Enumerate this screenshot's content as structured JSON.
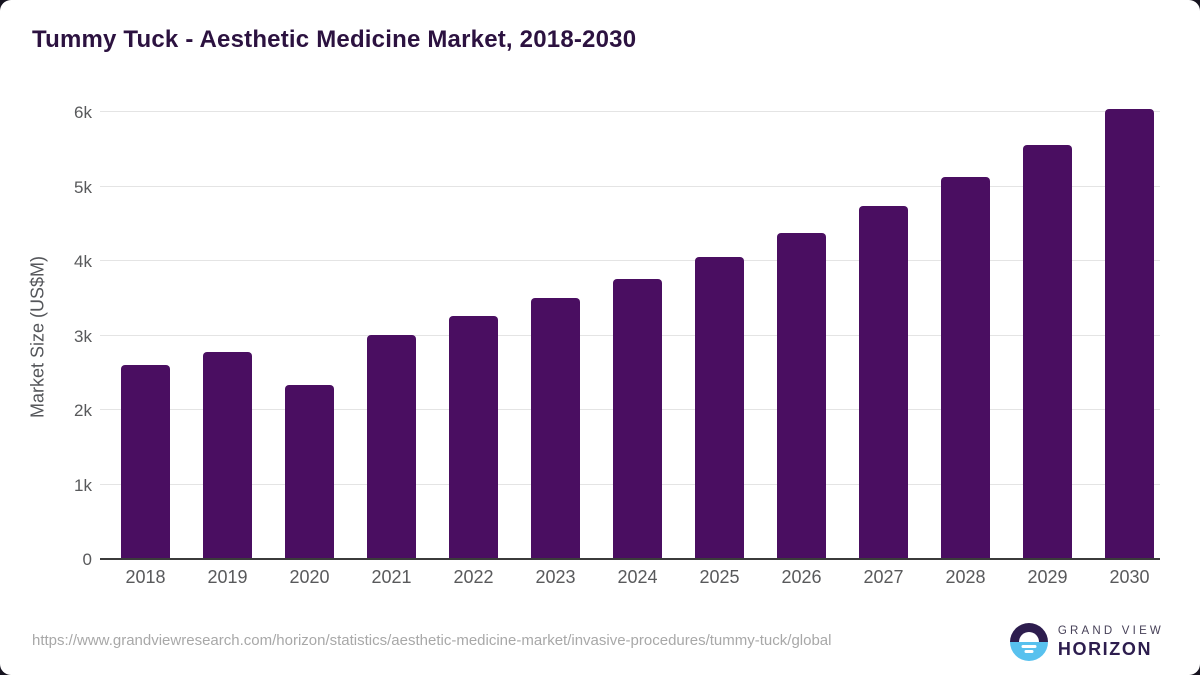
{
  "header": {
    "title": "Tummy Tuck - Aesthetic Medicine Market, 2018-2030"
  },
  "chart_data": {
    "type": "bar",
    "title": "Tummy Tuck - Aesthetic Medicine Market, 2018-2030",
    "categories": [
      "2018",
      "2019",
      "2020",
      "2021",
      "2022",
      "2023",
      "2024",
      "2025",
      "2026",
      "2027",
      "2028",
      "2029",
      "2030"
    ],
    "values": [
      2590,
      2760,
      2320,
      2990,
      3250,
      3490,
      3750,
      4040,
      4360,
      4730,
      5110,
      5550,
      6030
    ],
    "xlabel": "",
    "ylabel": "Market Size (US$M)",
    "ylim": [
      0,
      6000
    ],
    "yticks": [
      {
        "value": 0,
        "label": "0"
      },
      {
        "value": 1000,
        "label": "1k"
      },
      {
        "value": 2000,
        "label": "2k"
      },
      {
        "value": 3000,
        "label": "3k"
      },
      {
        "value": 4000,
        "label": "4k"
      },
      {
        "value": 5000,
        "label": "5k"
      },
      {
        "value": 6000,
        "label": "6k"
      }
    ],
    "grid": "horizontal",
    "legend": "none",
    "bar_color": "#4a0e61"
  },
  "footer": {
    "source_url": "https://www.grandviewresearch.com/horizon/statistics/aesthetic-medicine-market/invasive-procedures/tummy-tuck/global",
    "logo": {
      "top_text": "GRAND VIEW",
      "bottom_text": "HORIZON"
    }
  },
  "colors": {
    "background_behind_card": "#16131f",
    "card": "#ffffff",
    "bar": "#4a0e61",
    "title_text": "#2c1240",
    "tick_text": "#58595b",
    "axis_title_text": "#54565a",
    "gridline": "#e4e4e4",
    "axis_line": "#3b3b3b",
    "url_text": "#a8a8a8",
    "logo_dark": "#2d1d4e",
    "logo_blue": "#58c1ee",
    "logo_grand_view_text": "#474158"
  }
}
